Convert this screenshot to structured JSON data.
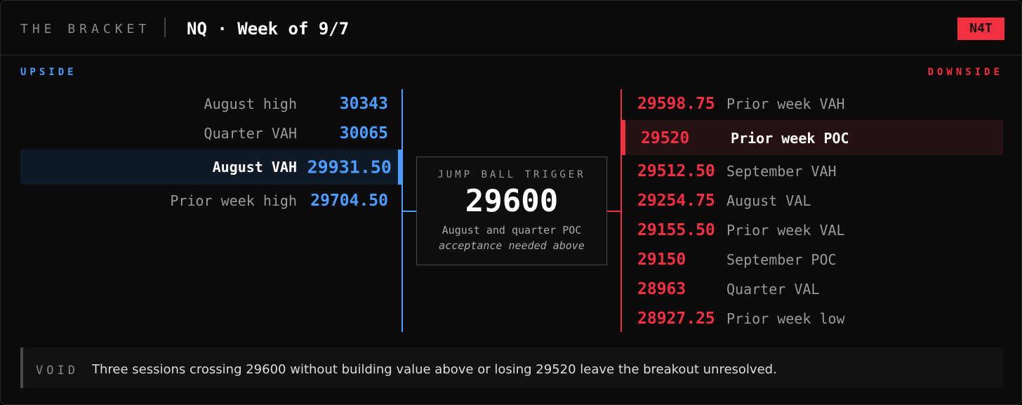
{
  "header": {
    "brand": "THE BRACKET",
    "title": "NQ · Week of 9/7",
    "badge": "N4T"
  },
  "upside": {
    "label": "UPSIDE",
    "levels": [
      {
        "label": "August high",
        "value": "30343"
      },
      {
        "label": "Quarter VAH",
        "value": "30065"
      },
      {
        "label": "August VAH",
        "value": "29931.50"
      },
      {
        "label": "Prior week high",
        "value": "29704.50"
      }
    ]
  },
  "trigger": {
    "label": "JUMP BALL TRIGGER",
    "value": "29600",
    "note": "August and quarter POC",
    "note_italic": "acceptance needed above"
  },
  "downside": {
    "label": "DOWNSIDE",
    "levels": [
      {
        "value": "29598.75",
        "label": "Prior week VAH"
      },
      {
        "value": "29520",
        "label": "Prior week POC"
      },
      {
        "value": "29512.50",
        "label": "September VAH"
      },
      {
        "value": "29254.75",
        "label": "August VAL"
      },
      {
        "value": "29155.50",
        "label": "Prior week VAL"
      },
      {
        "value": "29150",
        "label": "September POC"
      },
      {
        "value": "28963",
        "label": "Quarter VAL"
      },
      {
        "value": "28927.25",
        "label": "Prior week low"
      }
    ]
  },
  "footer": {
    "tag": "VOID",
    "text": "Three sessions crossing 29600 without building value above or losing 29520 leave the breakout unresolved."
  }
}
